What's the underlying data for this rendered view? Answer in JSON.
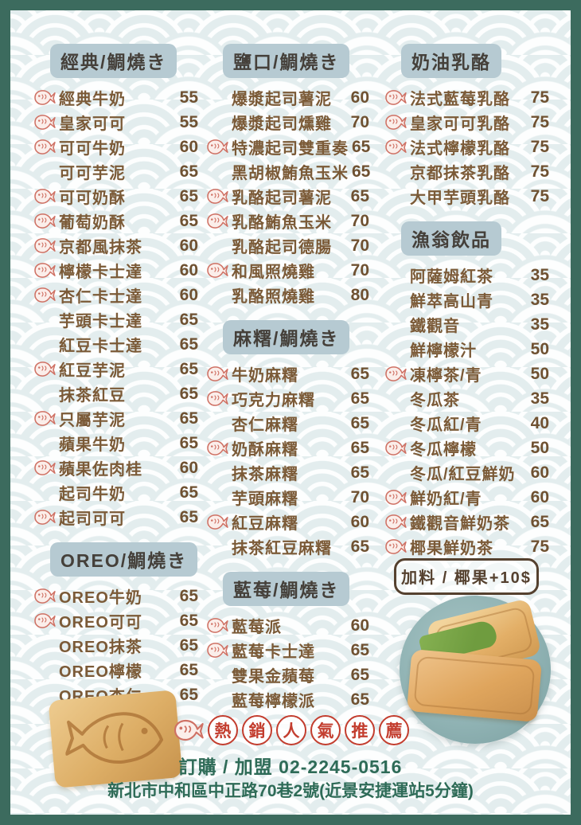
{
  "colors": {
    "frame_green": "#3c6b5e",
    "badge_blue": "#b6cad2",
    "item_brown": "#7b5a37",
    "stamp_red": "#c33d2e",
    "footer_green": "#2e6b57",
    "plate_teal": "#8fb2b3"
  },
  "columns": [
    {
      "sections": [
        {
          "title": "經典/鯛燒き",
          "items": [
            {
              "name": "經典牛奶",
              "price": "55",
              "hot": true
            },
            {
              "name": "皇家可可",
              "price": "55",
              "hot": true
            },
            {
              "name": "可可牛奶",
              "price": "60",
              "hot": true
            },
            {
              "name": "可可芋泥",
              "price": "65",
              "hot": false
            },
            {
              "name": "可可奶酥",
              "price": "65",
              "hot": true
            },
            {
              "name": "葡萄奶酥",
              "price": "65",
              "hot": true
            },
            {
              "name": "京都風抹茶",
              "price": "60",
              "hot": true
            },
            {
              "name": "檸檬卡士達",
              "price": "60",
              "hot": true
            },
            {
              "name": "杏仁卡士達",
              "price": "60",
              "hot": true
            },
            {
              "name": "芋頭卡士達",
              "price": "65",
              "hot": false
            },
            {
              "name": "紅豆卡士達",
              "price": "65",
              "hot": false
            },
            {
              "name": "紅豆芋泥",
              "price": "65",
              "hot": true
            },
            {
              "name": "抹茶紅豆",
              "price": "65",
              "hot": false
            },
            {
              "name": "只屬芋泥",
              "price": "65",
              "hot": true
            },
            {
              "name": "蘋果牛奶",
              "price": "65",
              "hot": false
            },
            {
              "name": "蘋果佐肉桂",
              "price": "60",
              "hot": true
            },
            {
              "name": "起司牛奶",
              "price": "65",
              "hot": false
            },
            {
              "name": "起司可可",
              "price": "65",
              "hot": true
            }
          ]
        },
        {
          "title": "OREO/鯛燒き",
          "items": [
            {
              "name": "OREO牛奶",
              "price": "65",
              "hot": true
            },
            {
              "name": "OREO可可",
              "price": "65",
              "hot": true
            },
            {
              "name": "OREO抹茶",
              "price": "65",
              "hot": false
            },
            {
              "name": "OREO檸檬",
              "price": "65",
              "hot": false
            },
            {
              "name": "OREO杏仁",
              "price": "65",
              "hot": false
            }
          ]
        }
      ]
    },
    {
      "sections": [
        {
          "title": "鹽口/鯛燒き",
          "items": [
            {
              "name": "爆漿起司薯泥",
              "price": "60",
              "hot": false
            },
            {
              "name": "爆漿起司燻雞",
              "price": "70",
              "hot": false
            },
            {
              "name": "特濃起司雙重奏",
              "price": "65",
              "hot": true
            },
            {
              "name": "黑胡椒鮪魚玉米",
              "price": "65",
              "hot": false
            },
            {
              "name": "乳酪起司薯泥",
              "price": "65",
              "hot": true
            },
            {
              "name": "乳酪鮪魚玉米",
              "price": "70",
              "hot": true
            },
            {
              "name": "乳酪起司德腸",
              "price": "70",
              "hot": false
            },
            {
              "name": "和風照燒雞",
              "price": "70",
              "hot": true
            },
            {
              "name": "乳酪照燒雞",
              "price": "80",
              "hot": false
            }
          ]
        },
        {
          "title": "麻糬/鯛燒き",
          "items": [
            {
              "name": "牛奶麻糬",
              "price": "65",
              "hot": true
            },
            {
              "name": "巧克力麻糬",
              "price": "65",
              "hot": true
            },
            {
              "name": "杏仁麻糬",
              "price": "65",
              "hot": false
            },
            {
              "name": "奶酥麻糬",
              "price": "65",
              "hot": true
            },
            {
              "name": "抹茶麻糬",
              "price": "65",
              "hot": false
            },
            {
              "name": "芋頭麻糬",
              "price": "70",
              "hot": false
            },
            {
              "name": "紅豆麻糬",
              "price": "60",
              "hot": true
            },
            {
              "name": "抹茶紅豆麻糬",
              "price": "65",
              "hot": false
            }
          ]
        },
        {
          "title": "藍莓/鯛燒き",
          "items": [
            {
              "name": "藍莓派",
              "price": "60",
              "hot": true
            },
            {
              "name": "藍莓卡士達",
              "price": "65",
              "hot": true
            },
            {
              "name": "雙果金蘋莓",
              "price": "65",
              "hot": false
            },
            {
              "name": "藍莓檸檬派",
              "price": "65",
              "hot": false
            }
          ]
        }
      ]
    },
    {
      "sections": [
        {
          "title": "奶油乳酪",
          "items": [
            {
              "name": "法式藍莓乳酪",
              "price": "75",
              "hot": true
            },
            {
              "name": "皇家可可乳酪",
              "price": "75",
              "hot": true
            },
            {
              "name": "法式檸檬乳酪",
              "price": "75",
              "hot": true
            },
            {
              "name": "京都抹茶乳酪",
              "price": "75",
              "hot": false
            },
            {
              "name": "大甲芋頭乳酪",
              "price": "75",
              "hot": false
            }
          ]
        },
        {
          "title": "漁翁飲品",
          "items": [
            {
              "name": "阿薩姆紅茶",
              "price": "35",
              "hot": false
            },
            {
              "name": "鮮萃高山青",
              "price": "35",
              "hot": false
            },
            {
              "name": "鐵觀音",
              "price": "35",
              "hot": false
            },
            {
              "name": "鮮檸檬汁",
              "price": "50",
              "hot": false
            },
            {
              "name": "凍檸茶/青",
              "price": "50",
              "hot": true
            },
            {
              "name": "冬瓜茶",
              "price": "35",
              "hot": false
            },
            {
              "name": "冬瓜紅/青",
              "price": "40",
              "hot": false
            },
            {
              "name": "冬瓜檸檬",
              "price": "50",
              "hot": true
            },
            {
              "name": "冬瓜/紅豆鮮奶",
              "price": "60",
              "hot": false
            },
            {
              "name": "鮮奶紅/青",
              "price": "60",
              "hot": true
            },
            {
              "name": "鐵觀音鮮奶茶",
              "price": "65",
              "hot": true
            },
            {
              "name": "椰果鮮奶茶",
              "price": "75",
              "hot": true
            }
          ]
        }
      ]
    }
  ],
  "addon_box": {
    "label": "加料 / 椰果+10$"
  },
  "footer": {
    "hot_legend": {
      "chars": [
        "熱",
        "銷",
        "人",
        "氣",
        "推",
        "薦"
      ]
    },
    "order_line": "訂購 / 加盟 02-2245-0516",
    "address_line": "新北市中和區中正路70巷2號(近景安捷運站5分鐘)"
  }
}
